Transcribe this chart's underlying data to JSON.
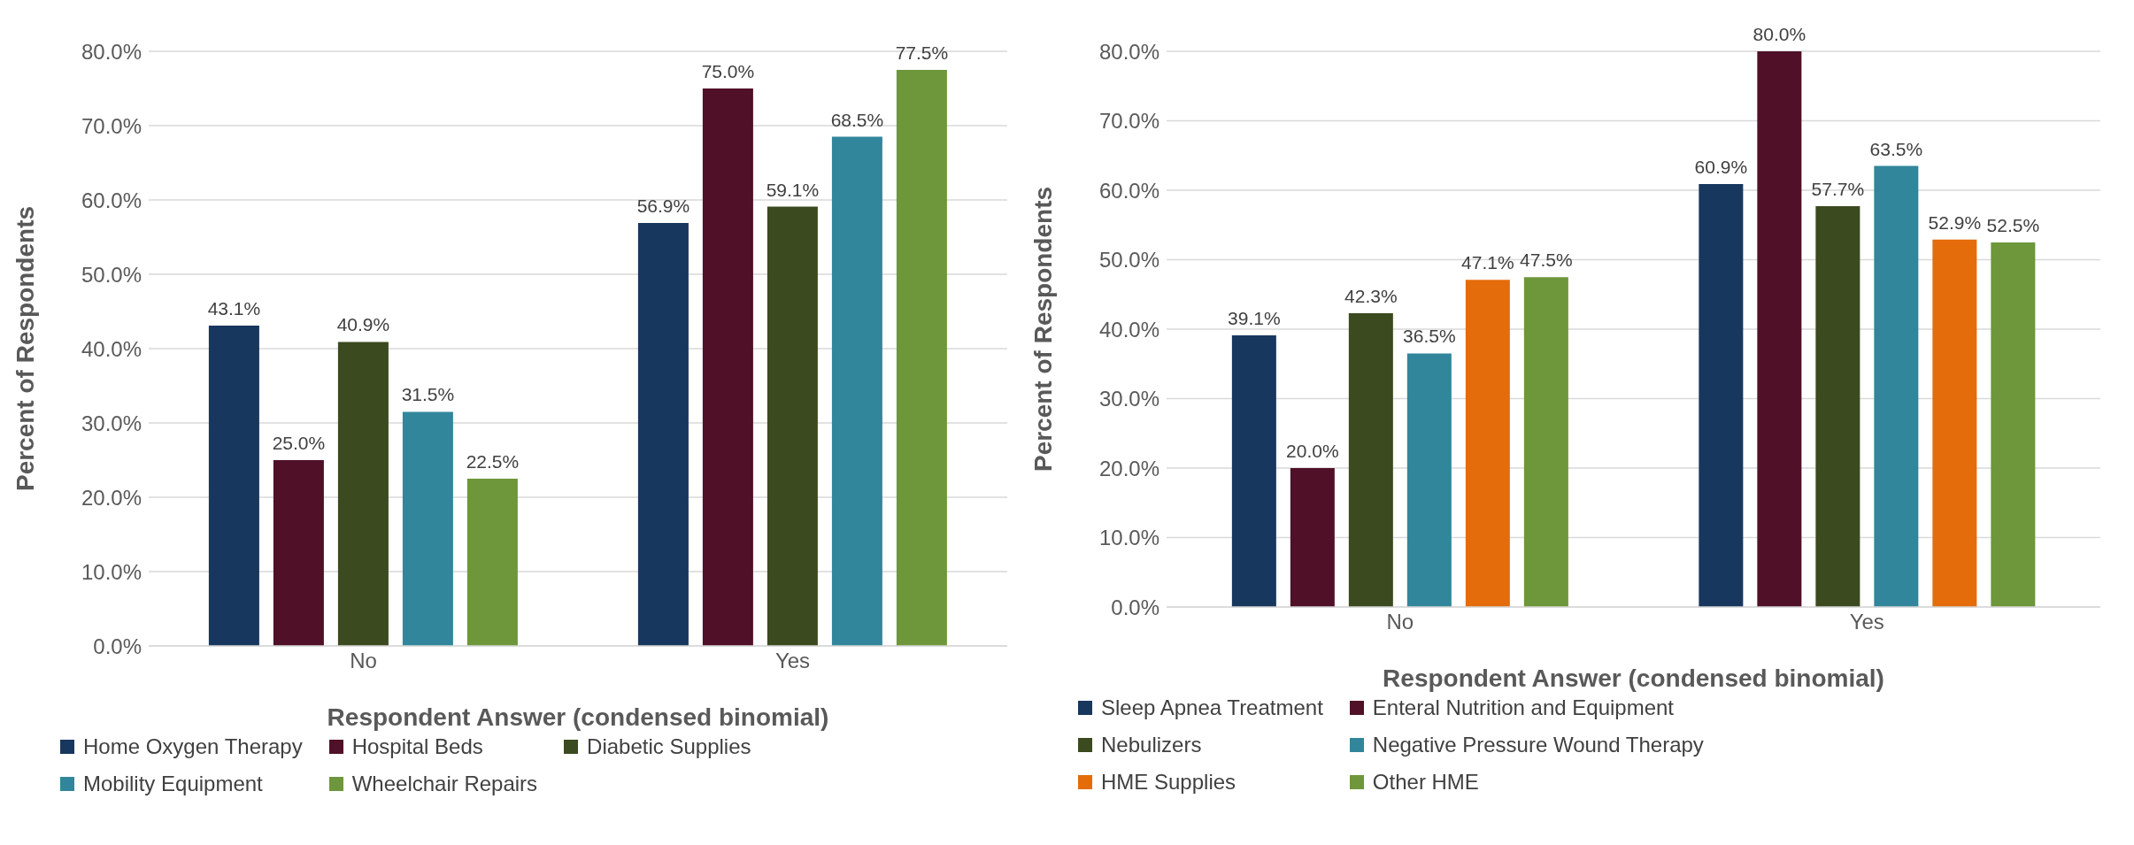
{
  "chart_data": [
    {
      "type": "bar",
      "xlabel": "Respondent Answer (condensed binomial)",
      "ylabel": "Percent of Respondents",
      "categories": [
        "No",
        "Yes"
      ],
      "series": [
        {
          "name": "Home Oxygen Therapy",
          "color": "#17375e",
          "values": [
            43.1,
            56.9
          ],
          "value_labels": [
            "43.1%",
            "56.9%"
          ]
        },
        {
          "name": "Hospital Beds",
          "color": "#4f1028",
          "values": [
            25.0,
            75.0
          ],
          "value_labels": [
            "25.0%",
            "75.0%"
          ]
        },
        {
          "name": "Diabetic Supplies",
          "color": "#3b4a1f",
          "values": [
            40.9,
            59.1
          ],
          "value_labels": [
            "40.9%",
            "59.1%"
          ]
        },
        {
          "name": "Mobility Equipment",
          "color": "#31869b",
          "values": [
            31.5,
            68.5
          ],
          "value_labels": [
            "31.5%",
            "68.5%"
          ]
        },
        {
          "name": "Wheelchair Repairs",
          "color": "#6d973a",
          "values": [
            22.5,
            77.5
          ],
          "value_labels": [
            "22.5%",
            "77.5%"
          ]
        }
      ],
      "ylim": [
        0,
        80
      ],
      "yticks": [
        {
          "value": 0,
          "label": "0.0%"
        },
        {
          "value": 10,
          "label": "10.0%"
        },
        {
          "value": 20,
          "label": "20.0%"
        },
        {
          "value": 30,
          "label": "30.0%"
        },
        {
          "value": 40,
          "label": "40.0%"
        },
        {
          "value": 50,
          "label": "50.0%"
        },
        {
          "value": 60,
          "label": "60.0%"
        },
        {
          "value": 70,
          "label": "70.0%"
        },
        {
          "value": 80,
          "label": "80.0%"
        }
      ],
      "grid": "y",
      "legend": "bottom"
    },
    {
      "type": "bar",
      "xlabel": "Respondent Answer (condensed binomial)",
      "ylabel": "Percent of Respondents",
      "categories": [
        "No",
        "Yes"
      ],
      "series": [
        {
          "name": "Sleep Apnea Treatment",
          "color": "#17375e",
          "values": [
            39.1,
            60.9
          ],
          "value_labels": [
            "39.1%",
            "60.9%"
          ]
        },
        {
          "name": "Enteral Nutrition and Equipment",
          "color": "#4f1028",
          "values": [
            20.0,
            80.0
          ],
          "value_labels": [
            "20.0%",
            "80.0%"
          ]
        },
        {
          "name": "Nebulizers",
          "color": "#3b4a1f",
          "values": [
            42.3,
            57.7
          ],
          "value_labels": [
            "42.3%",
            "57.7%"
          ]
        },
        {
          "name": "Negative Pressure Wound Therapy",
          "color": "#31869b",
          "values": [
            36.5,
            63.5
          ],
          "value_labels": [
            "36.5%",
            "63.5%"
          ]
        },
        {
          "name": "HME Supplies",
          "color": "#e46c0a",
          "values": [
            47.1,
            52.9
          ],
          "value_labels": [
            "47.1%",
            "52.9%"
          ]
        },
        {
          "name": "Other HME",
          "color": "#6d973a",
          "values": [
            47.5,
            52.5
          ],
          "value_labels": [
            "47.5%",
            "52.5%"
          ]
        }
      ],
      "ylim": [
        0,
        80
      ],
      "yticks": [
        {
          "value": 0,
          "label": "0.0%"
        },
        {
          "value": 10,
          "label": "10.0%"
        },
        {
          "value": 20,
          "label": "20.0%"
        },
        {
          "value": 30,
          "label": "30.0%"
        },
        {
          "value": 40,
          "label": "40.0%"
        },
        {
          "value": 50,
          "label": "50.0%"
        },
        {
          "value": 60,
          "label": "60.0%"
        },
        {
          "value": 70,
          "label": "70.0%"
        },
        {
          "value": 80,
          "label": "80.0%"
        }
      ],
      "grid": "y",
      "legend": "bottom"
    }
  ]
}
